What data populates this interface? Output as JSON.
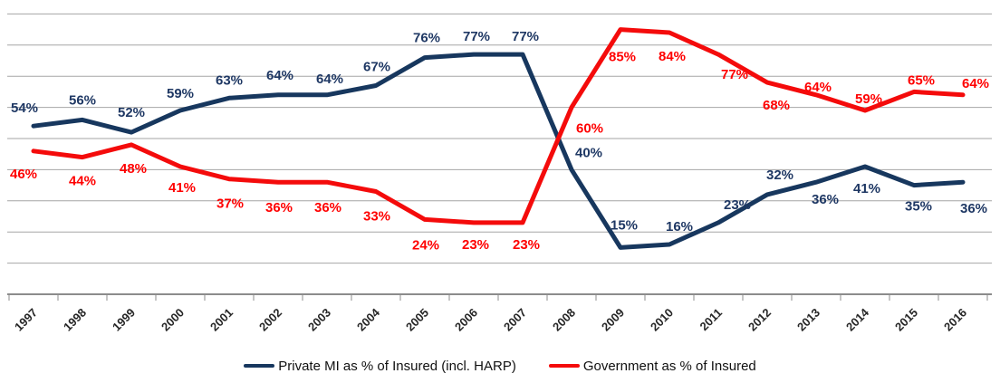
{
  "chart_data": {
    "type": "line",
    "title": "",
    "xlabel": "",
    "ylabel": "",
    "categories": [
      "1997",
      "1998",
      "1999",
      "2000",
      "2001",
      "2002",
      "2003",
      "2004",
      "2005",
      "2006",
      "2007",
      "2008",
      "2009",
      "2010",
      "2011",
      "2012",
      "2013",
      "2014",
      "2015",
      "2016"
    ],
    "series": [
      {
        "name": "Private MI as % of Insured (incl. HARP)",
        "color": "#17375e",
        "label_color": "#1f3864",
        "values": [
          54,
          56,
          52,
          59,
          63,
          64,
          64,
          67,
          76,
          77,
          77,
          40,
          15,
          16,
          23,
          32,
          36,
          41,
          35,
          36
        ],
        "label_offsets": [
          [
            -10,
            -20
          ],
          [
            0,
            -22
          ],
          [
            0,
            -22
          ],
          [
            0,
            -19
          ],
          [
            0,
            -20
          ],
          [
            2,
            -22
          ],
          [
            3,
            -18
          ],
          [
            1,
            -21
          ],
          [
            2,
            -22
          ],
          [
            3,
            -20
          ],
          [
            3,
            -20
          ],
          [
            19,
            -19
          ],
          [
            4,
            -25
          ],
          [
            11,
            -20
          ],
          [
            21,
            -20
          ],
          [
            14,
            -22
          ],
          [
            10,
            19
          ],
          [
            2,
            24
          ],
          [
            5,
            23
          ],
          [
            12,
            29
          ]
        ]
      },
      {
        "name": "Government as % of Insured",
        "color": "#f40b0b",
        "label_color": "#ff0000",
        "values": [
          46,
          44,
          48,
          41,
          37,
          36,
          36,
          33,
          24,
          23,
          23,
          60,
          85,
          84,
          77,
          68,
          64,
          59,
          65,
          64
        ],
        "label_offsets": [
          [
            -11,
            25
          ],
          [
            0,
            26
          ],
          [
            2,
            26
          ],
          [
            2,
            23
          ],
          [
            1,
            27
          ],
          [
            1,
            28
          ],
          [
            1,
            28
          ],
          [
            1,
            27
          ],
          [
            1,
            28
          ],
          [
            2,
            24
          ],
          [
            4,
            24
          ],
          [
            20,
            23
          ],
          [
            2,
            30
          ],
          [
            3,
            26
          ],
          [
            18,
            22
          ],
          [
            10,
            25
          ],
          [
            2,
            -9
          ],
          [
            4,
            -13
          ],
          [
            8,
            -13
          ],
          [
            14,
            -13
          ]
        ]
      }
    ],
    "value_format": "percent",
    "data_labels": "every point",
    "ylim": [
      0,
      92
    ],
    "gridlines": {
      "min": 10,
      "max": 90,
      "step": 10,
      "color": "#a6a6a6"
    },
    "axis": {
      "color": "#8c8c8c",
      "tick_label_color": "#262626"
    },
    "legend_position": "bottom",
    "y_axis_labels_shown": false
  }
}
